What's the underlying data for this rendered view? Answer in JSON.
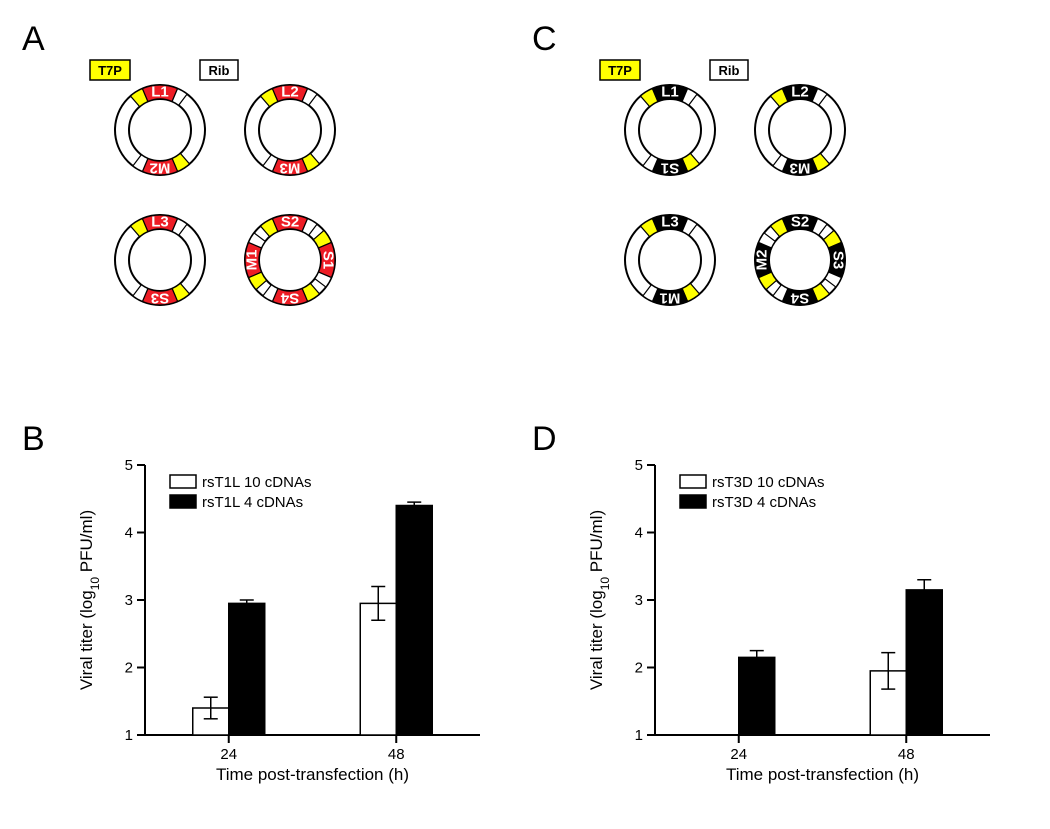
{
  "labels": {
    "A": "A",
    "B": "B",
    "C": "C",
    "D": "D"
  },
  "tags": {
    "T7P": "T7P",
    "Rib": "Rib"
  },
  "colors": {
    "t7p_fill": "#ffff00",
    "rib_fill": "#ffffff",
    "panelA_seg_fill": "#ed1c24",
    "panelC_seg_fill": "#000000",
    "bar_white": "#ffffff",
    "bar_black": "#000000",
    "background": "#ffffff"
  },
  "plasmids": {
    "outer_r": 45,
    "inner_r": 31,
    "stroke_w": 2,
    "panelA": [
      {
        "segments": [
          {
            "label": "L1",
            "rot": 0
          },
          {
            "label": "M2",
            "rot": 180
          }
        ]
      },
      {
        "segments": [
          {
            "label": "L2",
            "rot": 0
          },
          {
            "label": "M3",
            "rot": 180
          }
        ]
      },
      {
        "segments": [
          {
            "label": "L3",
            "rot": 0
          },
          {
            "label": "S3",
            "rot": 180
          }
        ]
      },
      {
        "segments": [
          {
            "label": "S2",
            "rot": 0
          },
          {
            "label": "S1",
            "rot": 90
          },
          {
            "label": "S4",
            "rot": 180
          },
          {
            "label": "M1",
            "rot": 270
          }
        ]
      }
    ],
    "panelC": [
      {
        "segments": [
          {
            "label": "L1",
            "rot": 0
          },
          {
            "label": "S1",
            "rot": 180
          }
        ]
      },
      {
        "segments": [
          {
            "label": "L2",
            "rot": 0
          },
          {
            "label": "M3",
            "rot": 180
          }
        ]
      },
      {
        "segments": [
          {
            "label": "L3",
            "rot": 0
          },
          {
            "label": "M1",
            "rot": 180
          }
        ]
      },
      {
        "segments": [
          {
            "label": "S2",
            "rot": 0
          },
          {
            "label": "S3",
            "rot": 90
          },
          {
            "label": "S4",
            "rot": 180
          },
          {
            "label": "M2",
            "rot": 270
          }
        ]
      }
    ]
  },
  "charts": {
    "y_ticks": [
      1,
      2,
      3,
      4,
      5
    ],
    "x_categories": [
      "24",
      "48"
    ],
    "x_label": "Time post-transfection (h)",
    "y_label_prefix": "Viral titer (log",
    "y_label_sub": "10",
    "y_label_suffix": " PFU/ml)",
    "panelB": {
      "legend": [
        {
          "label": "rsT1L 10 cDNAs",
          "fill": "bar_white"
        },
        {
          "label": "rsT1L 4 cDNAs",
          "fill": "bar_black"
        }
      ],
      "data": {
        "24": {
          "white": {
            "v": 1.4,
            "err": 0.16
          },
          "black": {
            "v": 2.95,
            "err": 0.05
          }
        },
        "48": {
          "white": {
            "v": 2.95,
            "err": 0.25
          },
          "black": {
            "v": 4.4,
            "err": 0.05
          }
        }
      }
    },
    "panelD": {
      "legend": [
        {
          "label": "rsT3D 10 cDNAs",
          "fill": "bar_white"
        },
        {
          "label": "rsT3D 4 cDNAs",
          "fill": "bar_black"
        }
      ],
      "data": {
        "24": {
          "white": {
            "v": null,
            "err": null
          },
          "black": {
            "v": 2.15,
            "err": 0.1
          }
        },
        "48": {
          "white": {
            "v": 1.95,
            "err": 0.27
          },
          "black": {
            "v": 3.15,
            "err": 0.15
          }
        }
      }
    }
  }
}
